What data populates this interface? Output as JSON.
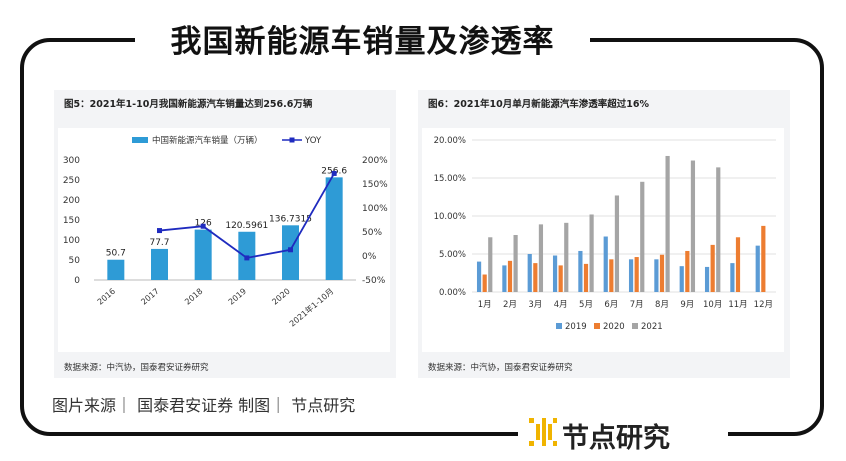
{
  "page_title": "我国新能源车销量及渗透率",
  "footer": {
    "text": "图片来源｜ 国泰君安证券   制图｜ 节点研究"
  },
  "brand": {
    "name": "节点研究"
  },
  "colors": {
    "blue": "#2e9bd6",
    "line": "#1f2bbf",
    "s2019": "#5b9bd5",
    "s2020": "#ed7d31",
    "s2021": "#a5a5a5"
  },
  "chart_data": [
    {
      "type": "bar",
      "title": "图5：2021年1-10月我国新能源汽车销量达到256.6万辆",
      "source": "数据来源：中汽协，国泰君安证券研究",
      "categories": [
        "2016",
        "2017",
        "2018",
        "2019",
        "2020",
        "2021年1-10月"
      ],
      "series": [
        {
          "name": "中国新能源汽车销量（万辆）",
          "type": "bar",
          "axis": "left",
          "values": [
            50.7,
            77.7,
            126,
            120.5961,
            136.7315,
            256.6
          ],
          "labels": [
            "50.7",
            "77.7",
            "126",
            "120.5961",
            "136.7315",
            "256.6"
          ]
        },
        {
          "name": "YOY",
          "type": "line",
          "axis": "right",
          "values": [
            null,
            53,
            62,
            -4,
            13,
            172
          ]
        }
      ],
      "ylim_left": [
        0,
        300
      ],
      "yticks_left": [
        "0",
        "50",
        "100",
        "150",
        "200",
        "250",
        "300"
      ],
      "ylim_right": [
        -50,
        200
      ],
      "yticks_right": [
        "-50%",
        "0%",
        "50%",
        "100%",
        "150%",
        "200%"
      ],
      "legend": "top"
    },
    {
      "type": "bar",
      "title": "图6：2021年10月单月新能源汽车渗透率超过16%",
      "source": "数据来源：中汽协，国泰君安证券研究",
      "categories": [
        "1月",
        "2月",
        "3月",
        "4月",
        "5月",
        "6月",
        "7月",
        "8月",
        "9月",
        "10月",
        "11月",
        "12月"
      ],
      "series": [
        {
          "name": "2019",
          "values": [
            4.0,
            3.5,
            5.0,
            4.8,
            5.4,
            7.3,
            4.3,
            4.3,
            3.4,
            3.3,
            3.8,
            6.1
          ]
        },
        {
          "name": "2020",
          "values": [
            2.3,
            4.1,
            3.8,
            3.5,
            3.7,
            4.3,
            4.6,
            4.9,
            5.4,
            6.2,
            7.2,
            8.7
          ]
        },
        {
          "name": "2021",
          "values": [
            7.2,
            7.5,
            8.9,
            9.1,
            10.2,
            12.7,
            14.5,
            17.9,
            17.3,
            16.4,
            null,
            null
          ]
        }
      ],
      "ylim": [
        0,
        20
      ],
      "yticks": [
        "0.00%",
        "5.00%",
        "10.00%",
        "15.00%",
        "20.00%"
      ],
      "legend": "bottom"
    }
  ]
}
